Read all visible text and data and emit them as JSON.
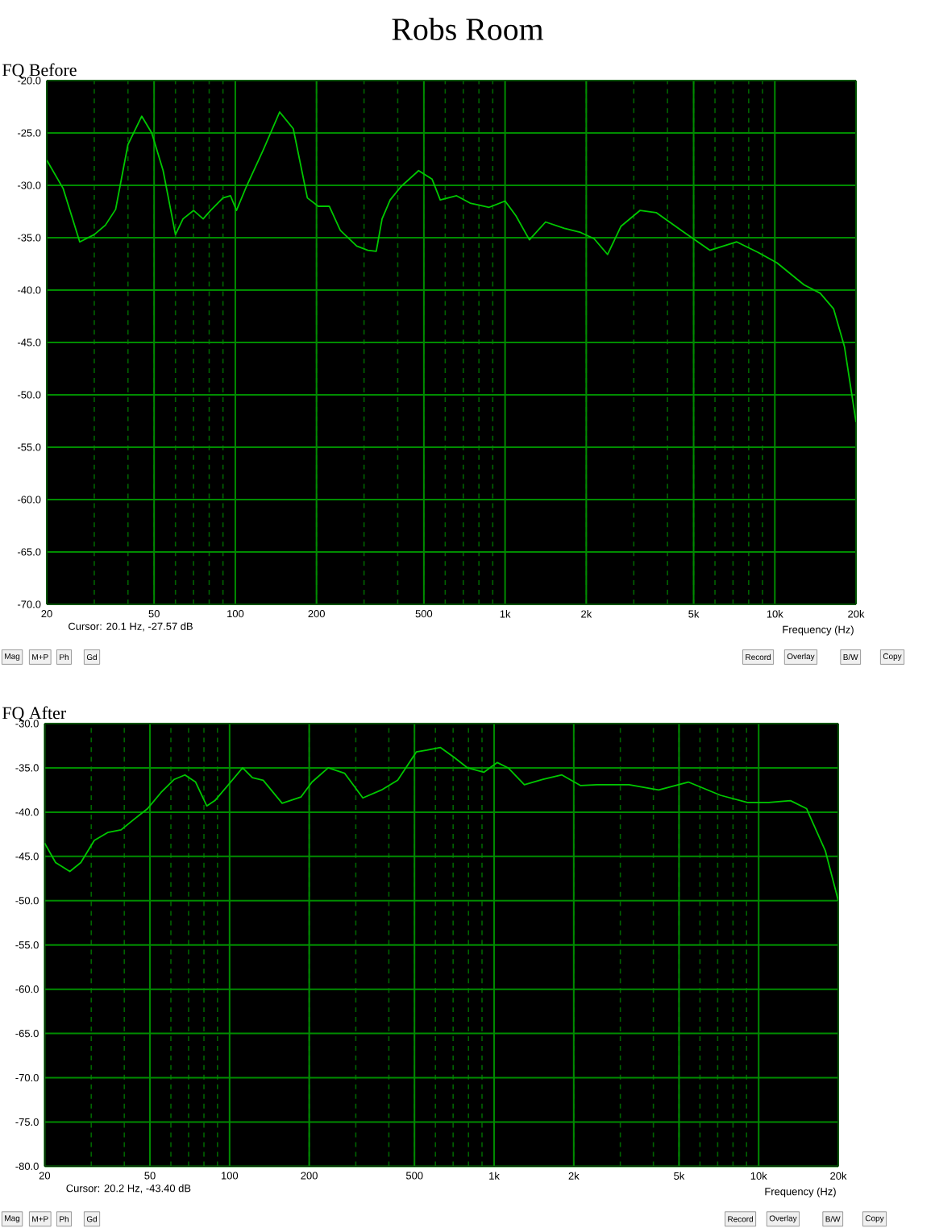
{
  "chart_data": [
    {
      "type": "line",
      "title": "Robs Room",
      "subtitle": "FQ Before",
      "xlabel": "Frequency (Hz)",
      "log": "x",
      "grid": true,
      "xlim": [
        20,
        20000
      ],
      "ylim": [
        -70,
        -20
      ],
      "xticks": [
        20,
        50,
        100,
        200,
        500,
        {
          "value": 1000,
          "label": "1k"
        },
        {
          "value": 2000,
          "label": "2k"
        },
        {
          "value": 5000,
          "label": "5k"
        },
        {
          "value": 10000,
          "label": "10k"
        },
        {
          "value": 20000,
          "label": "20k"
        }
      ],
      "yticks": [
        {
          "value": -20,
          "label": "-20.0"
        },
        {
          "value": -25,
          "label": "-25.0"
        },
        {
          "value": -30,
          "label": "-30.0"
        },
        {
          "value": -35,
          "label": "-35.0"
        },
        {
          "value": -40,
          "label": "-40.0"
        },
        {
          "value": -45,
          "label": "-45.0"
        },
        {
          "value": -50,
          "label": "-50.0"
        },
        {
          "value": -55,
          "label": "-55.0"
        },
        {
          "value": -60,
          "label": "-60.0"
        },
        {
          "value": -65,
          "label": "-65.0"
        },
        {
          "value": -70,
          "label": "-70.0"
        }
      ],
      "series": [
        {
          "color": "#00c800",
          "x": [
            20,
            23,
            26.5,
            30,
            33,
            36,
            40,
            45,
            49,
            54,
            60,
            64,
            70,
            76,
            81,
            90,
            96,
            101,
            110,
            127,
            146,
            164,
            185,
            203,
            223,
            245,
            282,
            310,
            333,
            350,
            375,
            412,
            478,
            536,
            575,
            661,
            742,
            873,
            1000,
            1097,
            1231,
            1413,
            1659,
            1905,
            2138,
            2398,
            2691,
            3162,
            3631,
            4560,
            5741,
            7228,
            8670,
            10190,
            12830,
            14730,
            16520,
            18120,
            20000
          ],
          "values": [
            -27.6,
            -30.3,
            -35.4,
            -34.7,
            -33.8,
            -32.3,
            -26.1,
            -23.4,
            -25,
            -28.6,
            -34.7,
            -33.2,
            -32.4,
            -33.2,
            -32.4,
            -31.2,
            -31,
            -32.4,
            -30.1,
            -26.6,
            -23,
            -24.6,
            -31.2,
            -32,
            -32,
            -34.3,
            -35.8,
            -36.2,
            -36.3,
            -33.2,
            -31.4,
            -30.1,
            -28.6,
            -29.4,
            -31.4,
            -31,
            -31.7,
            -32.1,
            -31.5,
            -32.9,
            -35.2,
            -33.5,
            -34.1,
            -34.5,
            -35.1,
            -36.6,
            -33.9,
            -32.4,
            -32.6,
            -34.4,
            -36.2,
            -35.4,
            -36.4,
            -37.4,
            -39.5,
            -40.3,
            -41.8,
            -45.4,
            -52.6
          ]
        }
      ],
      "annotations": [
        "Cursor: 20.1 Hz, -27.57 dB",
        "Mag",
        "M+P",
        "Ph",
        "Gd",
        "Record",
        "Overlay",
        "B/W",
        "Copy"
      ]
    },
    {
      "type": "line",
      "title": "FQ After",
      "xlabel": "Frequency (Hz)",
      "log": "x",
      "grid": true,
      "xlim": [
        20,
        20000
      ],
      "ylim": [
        -80,
        -30
      ],
      "xticks": [
        20,
        50,
        100,
        200,
        500,
        {
          "value": 1000,
          "label": "1k"
        },
        {
          "value": 2000,
          "label": "2k"
        },
        {
          "value": 5000,
          "label": "5k"
        },
        {
          "value": 10000,
          "label": "10k"
        },
        {
          "value": 20000,
          "label": "20k"
        }
      ],
      "yticks": [
        {
          "value": -30,
          "label": "-30.0"
        },
        {
          "value": -35,
          "label": "-35.0"
        },
        {
          "value": -40,
          "label": "-40.0"
        },
        {
          "value": -45,
          "label": "-45.0"
        },
        {
          "value": -50,
          "label": "-50.0"
        },
        {
          "value": -55,
          "label": "-55.0"
        },
        {
          "value": -60,
          "label": "-60.0"
        },
        {
          "value": -65,
          "label": "-65.0"
        },
        {
          "value": -70,
          "label": "-70.0"
        },
        {
          "value": -75,
          "label": "-75.0"
        },
        {
          "value": -80,
          "label": "-80.0"
        }
      ],
      "series": [
        {
          "color": "#00c800",
          "x": [
            20,
            22,
            24.9,
            27.4,
            30.8,
            34.6,
            38.9,
            43.6,
            49,
            55,
            61.8,
            67.8,
            74.4,
            82,
            88,
            101,
            112,
            122,
            134,
            158,
            186,
            205,
            236,
            272,
            319,
            375,
            432,
            508,
            558,
            627,
            705,
            794,
            914,
            1028,
            1130,
            1301,
            1532,
            1804,
            2125,
            2444,
            3236,
            4188,
            5420,
            7178,
            9063,
            10940,
            13190,
            15170,
            17880,
            20000
          ],
          "values": [
            -43.5,
            -45.7,
            -46.7,
            -45.7,
            -43.2,
            -42.3,
            -42,
            -40.8,
            -39.6,
            -37.8,
            -36.3,
            -35.8,
            -36.6,
            -39.3,
            -38.7,
            -36.6,
            -35,
            -36.1,
            -36.4,
            -39,
            -38.3,
            -36.6,
            -35,
            -35.6,
            -38.4,
            -37.5,
            -36.4,
            -33.2,
            -33,
            -32.7,
            -33.8,
            -35,
            -35.5,
            -34.4,
            -35,
            -36.9,
            -36.3,
            -35.8,
            -37,
            -36.9,
            -36.9,
            -37.5,
            -36.6,
            -38.1,
            -38.9,
            -38.9,
            -38.7,
            -39.6,
            -44.4,
            -50
          ]
        }
      ],
      "annotations": [
        "Cursor: 20.2 Hz, -43.40 dB",
        "Mag",
        "M+P",
        "Ph",
        "Gd",
        "Record",
        "Overlay",
        "B/W",
        "Copy"
      ]
    }
  ]
}
